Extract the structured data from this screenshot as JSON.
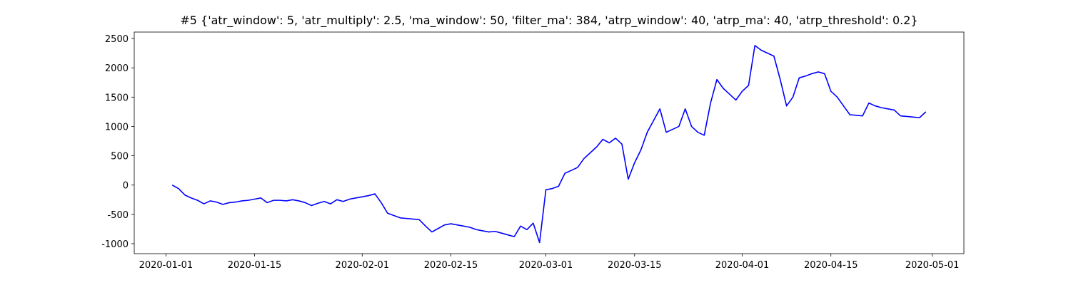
{
  "chart_data": {
    "type": "line",
    "title": "#5 {'atr_window': 5, 'atr_multiply': 2.5, 'ma_window': 50, 'filter_ma': 384, 'atrp_window': 40, 'atrp_ma': 40, 'atrp_threshold': 0.2}",
    "x": [
      "2020-01-02",
      "2020-01-03",
      "2020-01-04",
      "2020-01-05",
      "2020-01-06",
      "2020-01-07",
      "2020-01-08",
      "2020-01-09",
      "2020-01-10",
      "2020-01-11",
      "2020-01-12",
      "2020-01-13",
      "2020-01-14",
      "2020-01-15",
      "2020-01-16",
      "2020-01-17",
      "2020-01-18",
      "2020-01-19",
      "2020-01-20",
      "2020-01-21",
      "2020-01-22",
      "2020-01-23",
      "2020-01-24",
      "2020-01-25",
      "2020-01-26",
      "2020-01-27",
      "2020-01-28",
      "2020-01-29",
      "2020-01-30",
      "2020-01-31",
      "2020-02-01",
      "2020-02-02",
      "2020-02-03",
      "2020-02-04",
      "2020-02-05",
      "2020-02-06",
      "2020-02-07",
      "2020-02-08",
      "2020-02-09",
      "2020-02-10",
      "2020-02-11",
      "2020-02-12",
      "2020-02-13",
      "2020-02-14",
      "2020-02-15",
      "2020-02-16",
      "2020-02-17",
      "2020-02-18",
      "2020-02-19",
      "2020-02-20",
      "2020-02-21",
      "2020-02-22",
      "2020-02-23",
      "2020-02-24",
      "2020-02-25",
      "2020-02-26",
      "2020-02-27",
      "2020-02-28",
      "2020-02-29",
      "2020-03-01",
      "2020-03-02",
      "2020-03-03",
      "2020-03-04",
      "2020-03-05",
      "2020-03-06",
      "2020-03-07",
      "2020-03-08",
      "2020-03-09",
      "2020-03-10",
      "2020-03-11",
      "2020-03-12",
      "2020-03-13",
      "2020-03-14",
      "2020-03-15",
      "2020-03-16",
      "2020-03-17",
      "2020-03-18",
      "2020-03-19",
      "2020-03-20",
      "2020-03-21",
      "2020-03-22",
      "2020-03-23",
      "2020-03-24",
      "2020-03-25",
      "2020-03-26",
      "2020-03-27",
      "2020-03-28",
      "2020-03-29",
      "2020-03-30",
      "2020-03-31",
      "2020-04-01",
      "2020-04-02",
      "2020-04-03",
      "2020-04-04",
      "2020-04-05",
      "2020-04-06",
      "2020-04-07",
      "2020-04-08",
      "2020-04-09",
      "2020-04-10",
      "2020-04-11",
      "2020-04-12",
      "2020-04-13",
      "2020-04-14",
      "2020-04-15",
      "2020-04-16",
      "2020-04-17",
      "2020-04-18",
      "2020-04-19",
      "2020-04-20",
      "2020-04-21",
      "2020-04-22",
      "2020-04-23",
      "2020-04-24",
      "2020-04-25",
      "2020-04-26",
      "2020-04-27",
      "2020-04-28",
      "2020-04-29",
      "2020-04-30"
    ],
    "series": [
      {
        "color": "#0000ff",
        "values": [
          0,
          -60,
          -170,
          -220,
          -260,
          -320,
          -270,
          -290,
          -330,
          -300,
          -290,
          -270,
          -260,
          -240,
          -220,
          -300,
          -260,
          -260,
          -270,
          -250,
          -270,
          -300,
          -350,
          -310,
          -280,
          -320,
          -250,
          -280,
          -240,
          -220,
          -200,
          -180,
          -150,
          -300,
          -480,
          -520,
          -560,
          -570,
          -580,
          -590,
          -700,
          -800,
          -740,
          -680,
          -660,
          -680,
          -700,
          -720,
          -760,
          -780,
          -800,
          -790,
          -820,
          -850,
          -880,
          -700,
          -760,
          -650,
          -980,
          -80,
          -60,
          -20,
          200,
          250,
          300,
          450,
          550,
          650,
          780,
          720,
          800,
          700,
          100,
          380,
          600,
          900,
          1100,
          1300,
          900,
          950,
          1000,
          1300,
          1000,
          900,
          850,
          1400,
          1800,
          1650,
          1550,
          1450,
          1600,
          1700,
          2380,
          2300,
          2250,
          2200,
          1800,
          1350,
          1500,
          1830,
          1860,
          1900,
          1930,
          1900,
          1600,
          1500,
          1350,
          1200,
          1190,
          1180,
          1400,
          1350,
          1320,
          1300,
          1280,
          1180,
          1170,
          1160,
          1150,
          1250
        ]
      }
    ],
    "xlim": [
      "2019-12-27",
      "2020-05-06"
    ],
    "xticks": [
      "2020-01-01",
      "2020-01-15",
      "2020-02-01",
      "2020-02-15",
      "2020-03-01",
      "2020-03-15",
      "2020-04-01",
      "2020-04-15",
      "2020-05-01"
    ],
    "ylim": [
      -1170,
      2610
    ],
    "yticks": [
      -1000,
      -500,
      0,
      500,
      1000,
      1500,
      2000,
      2500
    ],
    "grid": false
  }
}
